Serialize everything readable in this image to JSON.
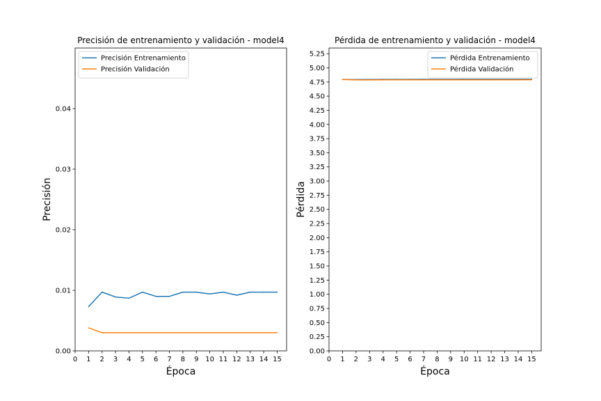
{
  "chart_data": [
    {
      "type": "line",
      "title": "Precisión de entrenamiento y validación - model4",
      "xlabel": "Época",
      "ylabel": "Precisión",
      "xlim": [
        0,
        15.7
      ],
      "ylim": [
        0,
        0.05
      ],
      "xticks": [
        0,
        1,
        2,
        3,
        4,
        5,
        6,
        7,
        8,
        9,
        10,
        11,
        12,
        13,
        14,
        15
      ],
      "yticks": [
        0.0,
        0.01,
        0.02,
        0.03,
        0.04
      ],
      "ytick_labels": [
        "0.00",
        "0.01",
        "0.02",
        "0.03",
        "0.04"
      ],
      "legend_position": "upper-left",
      "grid": false,
      "x": [
        1,
        2,
        3,
        4,
        5,
        6,
        7,
        8,
        9,
        10,
        11,
        12,
        13,
        14,
        15
      ],
      "series": [
        {
          "name": "Precisión Entrenamiento",
          "color": "#1f77b4",
          "values": [
            0.0073,
            0.0097,
            0.0089,
            0.0087,
            0.0097,
            0.009,
            0.009,
            0.0097,
            0.0097,
            0.0094,
            0.0097,
            0.0092,
            0.0097,
            0.0097,
            0.0097
          ]
        },
        {
          "name": "Precisión Validación",
          "color": "#ff7f0e",
          "values": [
            0.0038,
            0.003,
            0.003,
            0.003,
            0.003,
            0.003,
            0.003,
            0.003,
            0.003,
            0.003,
            0.003,
            0.003,
            0.003,
            0.003,
            0.003
          ]
        }
      ]
    },
    {
      "type": "line",
      "title": "Pérdida de entrenamiento y validación - model4",
      "xlabel": "Época",
      "ylabel": "Pérdida",
      "xlim": [
        0,
        15.7
      ],
      "ylim": [
        0,
        5.35
      ],
      "xticks": [
        0,
        1,
        2,
        3,
        4,
        5,
        6,
        7,
        8,
        9,
        10,
        11,
        12,
        13,
        14,
        15
      ],
      "yticks": [
        0.0,
        0.25,
        0.5,
        0.75,
        1.0,
        1.25,
        1.5,
        1.75,
        2.0,
        2.25,
        2.5,
        2.75,
        3.0,
        3.25,
        3.5,
        3.75,
        4.0,
        4.25,
        4.5,
        4.75,
        5.0,
        5.25
      ],
      "ytick_labels": [
        "0.00",
        "0.25",
        "0.50",
        "0.75",
        "1.00",
        "1.25",
        "1.50",
        "1.75",
        "2.00",
        "2.25",
        "2.50",
        "2.75",
        "3.00",
        "3.25",
        "3.50",
        "3.75",
        "4.00",
        "4.25",
        "4.50",
        "4.75",
        "5.00",
        "5.25"
      ],
      "legend_position": "upper-right",
      "grid": false,
      "x": [
        1,
        2,
        3,
        4,
        5,
        6,
        7,
        8,
        9,
        10,
        11,
        12,
        13,
        14,
        15
      ],
      "series": [
        {
          "name": "Pérdida Entrenamiento",
          "color": "#1f77b4",
          "values": [
            4.795,
            4.793,
            4.795,
            4.796,
            4.797,
            4.797,
            4.798,
            4.798,
            4.798,
            4.799,
            4.799,
            4.799,
            4.8,
            4.8,
            4.8
          ]
        },
        {
          "name": "Pérdida Validación",
          "color": "#ff7f0e",
          "values": [
            4.793,
            4.788,
            4.788,
            4.789,
            4.789,
            4.789,
            4.789,
            4.789,
            4.789,
            4.789,
            4.789,
            4.789,
            4.789,
            4.789,
            4.79
          ]
        }
      ]
    }
  ]
}
